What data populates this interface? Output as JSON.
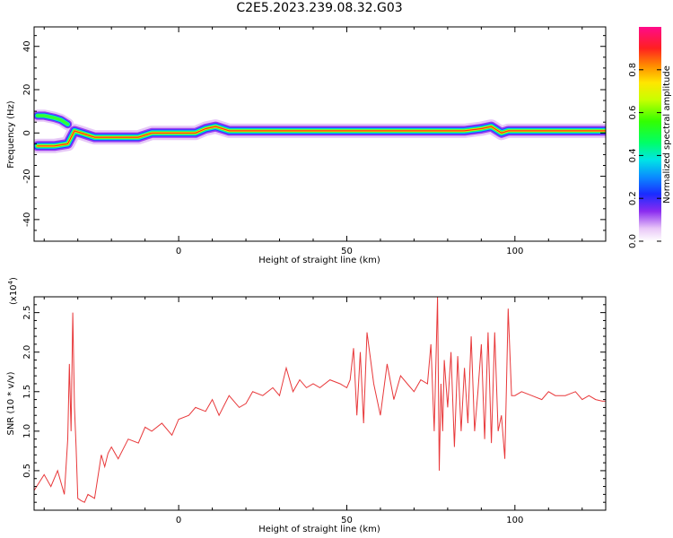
{
  "title": "C2E5.2023.239.08.32.G03",
  "chart_data": [
    {
      "type": "heatmap",
      "xlabel": "Height of straight line (km)",
      "ylabel": "Frequency (Hz)",
      "xlim": [
        -43,
        127
      ],
      "ylim": [
        -50,
        49
      ],
      "xticks": [
        "0",
        "50",
        "100"
      ],
      "xtick_values": [
        0,
        50,
        100
      ],
      "yticks": [
        "40",
        "20",
        "0",
        "-20",
        "-40"
      ],
      "ytick_values": [
        40,
        20,
        0,
        -20,
        -40
      ],
      "colorbar": {
        "label": "Normalized spectral amplitude",
        "ticks": [
          "0.0",
          "0.2",
          "0.4",
          "0.6",
          "0.8"
        ],
        "tick_values": [
          0.0,
          0.2,
          0.4,
          0.6,
          0.8
        ],
        "range": [
          0,
          1
        ]
      },
      "ridge": {
        "x": [
          -42,
          -37,
          -33,
          -31,
          -29,
          -27,
          -25,
          -22,
          -18,
          -12,
          -8,
          0,
          5,
          8,
          11,
          15,
          25,
          35,
          45,
          55,
          65,
          75,
          85,
          90,
          93,
          96,
          98,
          100,
          110,
          120,
          127
        ],
        "y": [
          -6,
          -6,
          -5,
          1,
          0,
          -1,
          -2,
          -2,
          -2,
          -2,
          0,
          0,
          0,
          2,
          3,
          1,
          1,
          1,
          1,
          1,
          1,
          1,
          1,
          2,
          3,
          0,
          1,
          1,
          1,
          1,
          1
        ]
      },
      "upper_branch": {
        "x": [
          -42,
          -40,
          -37,
          -35,
          -33
        ],
        "y": [
          8,
          8,
          7,
          6,
          4
        ]
      }
    },
    {
      "type": "line",
      "xlabel": "Height of straight line (km)",
      "ylabel": "SNR (10 * v/v)",
      "scale_label": "(x10",
      "scale_exp": "4",
      "scale_close": ")",
      "xlim": [
        -43,
        127
      ],
      "ylim": [
        0,
        2.7
      ],
      "xticks": [
        "0",
        "50",
        "100"
      ],
      "xtick_values": [
        0,
        50,
        100
      ],
      "yticks": [
        "0.5",
        "1.0",
        "1.5",
        "2.0",
        "2.5"
      ],
      "ytick_values": [
        0.5,
        1.0,
        1.5,
        2.0,
        2.5
      ],
      "series": [
        {
          "color": "#e8383a",
          "x": [
            -43,
            -40,
            -38,
            -36,
            -34,
            -33,
            -32.5,
            -32,
            -31.5,
            -31,
            -30.5,
            -30,
            -29,
            -28,
            -27,
            -25,
            -23,
            -22,
            -21,
            -20,
            -18,
            -15,
            -12,
            -10,
            -8,
            -5,
            -2,
            0,
            3,
            5,
            8,
            10,
            12,
            15,
            18,
            20,
            22,
            25,
            28,
            30,
            32,
            34,
            36,
            38,
            40,
            42,
            45,
            48,
            50,
            51,
            52,
            53,
            54,
            55,
            56,
            58,
            60,
            62,
            64,
            66,
            68,
            70,
            72,
            74,
            75,
            76,
            77,
            77.5,
            78,
            78.5,
            79,
            80,
            81,
            82,
            83,
            84,
            85,
            86,
            87,
            88,
            89,
            90,
            91,
            92,
            93,
            94,
            95,
            96,
            97,
            98,
            99,
            100,
            102,
            105,
            108,
            110,
            112,
            115,
            118,
            120,
            122,
            124,
            126,
            127
          ],
          "y": [
            0.25,
            0.45,
            0.3,
            0.5,
            0.2,
            0.9,
            1.85,
            1.0,
            2.5,
            1.3,
            0.8,
            0.15,
            0.12,
            0.1,
            0.2,
            0.15,
            0.7,
            0.55,
            0.72,
            0.8,
            0.65,
            0.9,
            0.85,
            1.05,
            1.0,
            1.1,
            0.95,
            1.15,
            1.2,
            1.3,
            1.25,
            1.4,
            1.2,
            1.45,
            1.3,
            1.35,
            1.5,
            1.45,
            1.55,
            1.45,
            1.8,
            1.5,
            1.65,
            1.55,
            1.6,
            1.55,
            1.65,
            1.6,
            1.55,
            1.65,
            2.05,
            1.2,
            2.0,
            1.1,
            2.25,
            1.6,
            1.2,
            1.85,
            1.4,
            1.7,
            1.6,
            1.5,
            1.65,
            1.6,
            2.1,
            1.0,
            2.7,
            0.5,
            1.6,
            1.0,
            1.9,
            1.3,
            2.0,
            0.8,
            1.95,
            1.0,
            1.8,
            1.1,
            2.2,
            1.0,
            1.5,
            2.1,
            0.9,
            2.25,
            0.85,
            2.25,
            1.0,
            1.2,
            0.65,
            2.55,
            1.45,
            1.45,
            1.5,
            1.45,
            1.4,
            1.5,
            1.45,
            1.45,
            1.5,
            1.4,
            1.45,
            1.4,
            1.38,
            1.38
          ]
        }
      ]
    }
  ]
}
